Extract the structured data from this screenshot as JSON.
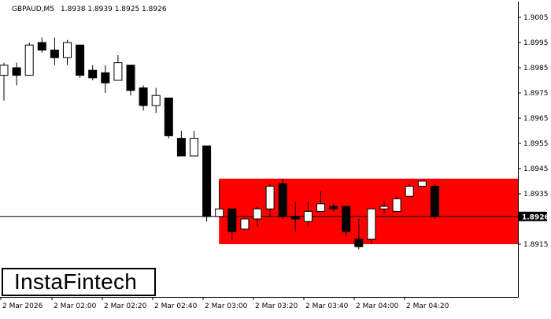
{
  "header": {
    "symbol": "GBPAUD,M5",
    "ohlc": "1.8938 1.8939 1.8925 1.8926"
  },
  "logo": {
    "text": "InstaFintech"
  },
  "price_label": "1.8926",
  "colors": {
    "zone": "#ff0000",
    "candle": "#000000",
    "price_label_bg": "#000000",
    "price_label_text": "#ffffff"
  },
  "chart_data": {
    "type": "candlestick",
    "symbol": "GBPAUD",
    "timeframe": "M5",
    "ylim": [
      1.891,
      1.901
    ],
    "yticks": [
      "1.9005",
      "1.8995",
      "1.8985",
      "1.8975",
      "1.8965",
      "1.8955",
      "1.8945",
      "1.8935",
      "1.8915"
    ],
    "xticks": [
      "2 Mar 2026",
      "2 Mar 02:00",
      "2 Mar 02:20",
      "2 Mar 02:40",
      "2 Mar 03:00",
      "2 Mar 03:20",
      "2 Mar 03:40",
      "2 Mar 04:00",
      "2 Mar 04:20"
    ],
    "current_price": 1.8926,
    "zone": {
      "high": 1.8941,
      "low": 1.8915,
      "start": "2 Mar 03:05"
    },
    "candles": [
      {
        "o": 1.8982,
        "h": 1.8987,
        "l": 1.8972,
        "c": 1.8986
      },
      {
        "o": 1.8985,
        "h": 1.8987,
        "l": 1.8978,
        "c": 1.8982
      },
      {
        "o": 1.8982,
        "h": 1.8995,
        "l": 1.8982,
        "c": 1.8994
      },
      {
        "o": 1.8995,
        "h": 1.8997,
        "l": 1.8991,
        "c": 1.8992
      },
      {
        "o": 1.8992,
        "h": 1.8997,
        "l": 1.8986,
        "c": 1.8989
      },
      {
        "o": 1.8989,
        "h": 1.8996,
        "l": 1.8986,
        "c": 1.8995
      },
      {
        "o": 1.8994,
        "h": 1.8994,
        "l": 1.8981,
        "c": 1.8982
      },
      {
        "o": 1.8984,
        "h": 1.8986,
        "l": 1.898,
        "c": 1.8981
      },
      {
        "o": 1.8983,
        "h": 1.8986,
        "l": 1.8975,
        "c": 1.8979
      },
      {
        "o": 1.898,
        "h": 1.899,
        "l": 1.898,
        "c": 1.8987
      },
      {
        "o": 1.8986,
        "h": 1.8986,
        "l": 1.8974,
        "c": 1.8976
      },
      {
        "o": 1.8977,
        "h": 1.8978,
        "l": 1.8968,
        "c": 1.897
      },
      {
        "o": 1.897,
        "h": 1.8977,
        "l": 1.8967,
        "c": 1.8974
      },
      {
        "o": 1.8973,
        "h": 1.8973,
        "l": 1.8957,
        "c": 1.8958
      },
      {
        "o": 1.8957,
        "h": 1.896,
        "l": 1.895,
        "c": 1.895
      },
      {
        "o": 1.895,
        "h": 1.896,
        "l": 1.895,
        "c": 1.8957
      },
      {
        "o": 1.8954,
        "h": 1.8954,
        "l": 1.8924,
        "c": 1.8926
      },
      {
        "o": 1.8926,
        "h": 1.894,
        "l": 1.8926,
        "c": 1.8929
      },
      {
        "o": 1.8929,
        "h": 1.8929,
        "l": 1.8917,
        "c": 1.892
      },
      {
        "o": 1.8921,
        "h": 1.8925,
        "l": 1.8921,
        "c": 1.8925
      },
      {
        "o": 1.8925,
        "h": 1.893,
        "l": 1.8922,
        "c": 1.8929
      },
      {
        "o": 1.8929,
        "h": 1.8939,
        "l": 1.8926,
        "c": 1.8938
      },
      {
        "o": 1.8939,
        "h": 1.8941,
        "l": 1.8925,
        "c": 1.8926
      },
      {
        "o": 1.8926,
        "h": 1.8932,
        "l": 1.892,
        "c": 1.8925
      },
      {
        "o": 1.8924,
        "h": 1.8932,
        "l": 1.8922,
        "c": 1.8928
      },
      {
        "o": 1.8928,
        "h": 1.8936,
        "l": 1.8928,
        "c": 1.8931
      },
      {
        "o": 1.893,
        "h": 1.8931,
        "l": 1.8928,
        "c": 1.8929
      },
      {
        "o": 1.893,
        "h": 1.893,
        "l": 1.8918,
        "c": 1.892
      },
      {
        "o": 1.8917,
        "h": 1.8925,
        "l": 1.8913,
        "c": 1.8914
      },
      {
        "o": 1.8917,
        "h": 1.8929,
        "l": 1.8915,
        "c": 1.8929
      },
      {
        "o": 1.8929,
        "h": 1.8932,
        "l": 1.8927,
        "c": 1.893
      },
      {
        "o": 1.8928,
        "h": 1.8934,
        "l": 1.8928,
        "c": 1.8933
      },
      {
        "o": 1.8934,
        "h": 1.8939,
        "l": 1.8934,
        "c": 1.8938
      },
      {
        "o": 1.8938,
        "h": 1.894,
        "l": 1.8938,
        "c": 1.894
      },
      {
        "o": 1.8938,
        "h": 1.8939,
        "l": 1.8925,
        "c": 1.8926
      }
    ]
  }
}
